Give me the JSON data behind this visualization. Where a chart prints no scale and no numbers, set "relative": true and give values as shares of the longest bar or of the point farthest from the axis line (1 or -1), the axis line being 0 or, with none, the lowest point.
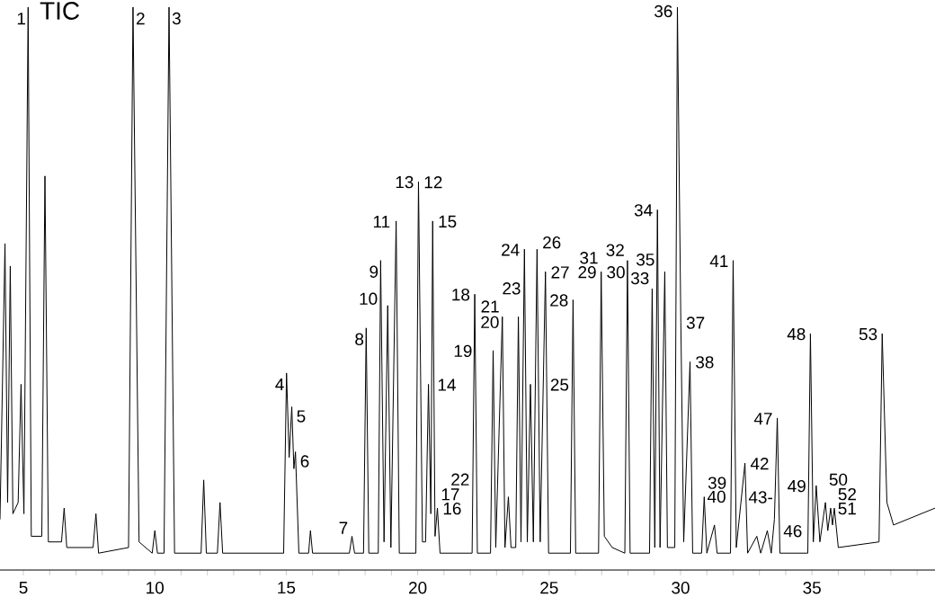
{
  "chart_data": {
    "type": "line",
    "title": "TIC",
    "relative": true,
    "color": "#000000",
    "xlim": [
      4.11,
      39.68
    ],
    "xticks": [
      5,
      {
        "value": 6,
        "label": null
      },
      {
        "value": 7,
        "label": null
      },
      {
        "value": 8,
        "label": null
      },
      {
        "value": 9,
        "label": null
      },
      10,
      {
        "value": 11,
        "label": null
      },
      {
        "value": 12,
        "label": null
      },
      {
        "value": 13,
        "label": null
      },
      {
        "value": 14,
        "label": null
      },
      15,
      {
        "value": 16,
        "label": null
      },
      {
        "value": 17,
        "label": null
      },
      {
        "value": 18,
        "label": null
      },
      {
        "value": 19,
        "label": null
      },
      20,
      {
        "value": 21,
        "label": null
      },
      {
        "value": 22,
        "label": null
      },
      {
        "value": 23,
        "label": null
      },
      {
        "value": 24,
        "label": null
      },
      25,
      {
        "value": 26,
        "label": null
      },
      {
        "value": 27,
        "label": null
      },
      {
        "value": 28,
        "label": null
      },
      {
        "value": 29,
        "label": null
      },
      30,
      {
        "value": 31,
        "label": null
      },
      {
        "value": 32,
        "label": null
      },
      {
        "value": 33,
        "label": null
      },
      {
        "value": 34,
        "label": null
      },
      35,
      {
        "value": 36,
        "label": null
      },
      {
        "value": 37,
        "label": null
      },
      {
        "value": 38,
        "label": null
      },
      {
        "value": 39,
        "label": null
      }
    ],
    "x": [
      4.11,
      4.3,
      4.4,
      4.5,
      4.6,
      4.8,
      4.91,
      5.02,
      5.18,
      5.3,
      5.7,
      5.82,
      5.95,
      6.45,
      6.55,
      6.65,
      7.65,
      7.76,
      7.86,
      9.0,
      9.17,
      9.4,
      9.9,
      10.0,
      10.1,
      10.35,
      10.54,
      10.75,
      11.76,
      11.86,
      11.96,
      12.38,
      12.48,
      12.58,
      14.9,
      15.01,
      15.11,
      15.21,
      15.29,
      15.35,
      15.48,
      15.85,
      15.92,
      16.0,
      17.4,
      17.5,
      17.6,
      17.94,
      18.04,
      18.14,
      18.5,
      18.59,
      18.72,
      18.86,
      18.98,
      19.18,
      19.3,
      19.93,
      20.03,
      20.18,
      20.3,
      20.41,
      20.5,
      20.57,
      20.66,
      20.75,
      20.85,
      22.07,
      22.17,
      22.27,
      22.77,
      22.87,
      22.97,
      23.22,
      23.32,
      23.45,
      23.55,
      23.73,
      23.83,
      23.93,
      24.06,
      24.17,
      24.29,
      24.4,
      24.54,
      24.66,
      24.86,
      24.98,
      25.81,
      25.91,
      26.01,
      26.88,
      26.98,
      27.1,
      27.4,
      27.88,
      27.98,
      28.08,
      28.82,
      28.92,
      29.02,
      29.12,
      29.22,
      29.4,
      29.5,
      29.78,
      29.88,
      30.01,
      30.12,
      30.36,
      30.46,
      30.8,
      30.9,
      31.0,
      31.29,
      31.39,
      31.9,
      32.0,
      32.12,
      32.45,
      32.55,
      32.9,
      33.05,
      33.3,
      33.45,
      33.57,
      33.68,
      33.78,
      34.84,
      34.94,
      35.05,
      35.16,
      35.3,
      35.51,
      35.6,
      35.71,
      35.78,
      35.85,
      36.0,
      37.55,
      37.67,
      37.85,
      38.1,
      39.68
    ],
    "values": [
      0.09,
      0.58,
      0.12,
      0.54,
      0.1,
      0.12,
      0.33,
      0.1,
      1,
      0.06,
      0.06,
      0.7,
      0.05,
      0.05,
      0.11,
      0.04,
      0.04,
      0.1,
      0.03,
      0.04,
      1,
      0.05,
      0.03,
      0.07,
      0.03,
      0.03,
      1,
      0.03,
      0.03,
      0.16,
      0.03,
      0.03,
      0.12,
      0.03,
      0.03,
      0.35,
      0.2,
      0.29,
      0.18,
      0.21,
      0.03,
      0.03,
      0.07,
      0.03,
      0.03,
      0.06,
      0.03,
      0.03,
      0.43,
      0.03,
      0.03,
      0.55,
      0.05,
      0.47,
      0.04,
      0.62,
      0.03,
      0.03,
      0.69,
      0.05,
      0.05,
      0.33,
      0.1,
      0.62,
      0.06,
      0.11,
      0.03,
      0.03,
      0.49,
      0.03,
      0.03,
      0.39,
      0.04,
      0.45,
      0.04,
      0.13,
      0.04,
      0.04,
      0.45,
      0.05,
      0.57,
      0.05,
      0.33,
      0.05,
      0.57,
      0.05,
      0.53,
      0.03,
      0.03,
      0.48,
      0.03,
      0.03,
      0.53,
      0.06,
      0.04,
      0.03,
      0.55,
      0.03,
      0.03,
      0.5,
      0.04,
      0.64,
      0.04,
      0.53,
      0.04,
      0.04,
      1,
      0.44,
      0.05,
      0.37,
      0.03,
      0.03,
      0.13,
      0.03,
      0.08,
      0.03,
      0.03,
      0.55,
      0.04,
      0.19,
      0.03,
      0.06,
      0.03,
      0.07,
      0.03,
      0.09,
      0.27,
      0.03,
      0.03,
      0.42,
      0.05,
      0.15,
      0.05,
      0.12,
      0.07,
      0.11,
      0.08,
      0.11,
      0.04,
      0.05,
      0.42,
      0.12,
      0.08,
      0.11
    ],
    "annotations": [
      {
        "text": "1",
        "x": 5.18,
        "y": 1
      },
      {
        "text": "2",
        "x": 9.17,
        "y": 1
      },
      {
        "text": "3",
        "x": 10.54,
        "y": 1
      },
      {
        "text": "4",
        "x": 15.01,
        "y": 0.35
      },
      {
        "text": "5",
        "x": 15.21,
        "y": 0.29
      },
      {
        "text": "6",
        "x": 15.35,
        "y": 0.21
      },
      {
        "text": "7",
        "x": 17.5,
        "y": 0.06
      },
      {
        "text": "8",
        "x": 18.04,
        "y": 0.43
      },
      {
        "text": "9",
        "x": 18.59,
        "y": 0.55
      },
      {
        "text": "10",
        "x": 18.86,
        "y": 0.47
      },
      {
        "text": "11",
        "x": 19.18,
        "y": 0.62
      },
      {
        "text": "12",
        "x": 20.03,
        "y": 0.69
      },
      {
        "text": "13",
        "x": 20.03,
        "y": 0.69
      },
      {
        "text": "14",
        "x": 20.41,
        "y": 0.33
      },
      {
        "text": "15",
        "x": 20.57,
        "y": 0.62
      },
      {
        "text": "16",
        "x": 20.75,
        "y": 0.11
      },
      {
        "text": "17",
        "x": 20.75,
        "y": 0.11
      },
      {
        "text": "18",
        "x": 22.17,
        "y": 0.49
      },
      {
        "text": "19",
        "x": 22.87,
        "y": 0.39
      },
      {
        "text": "20",
        "x": 22.87,
        "y": 0.39
      },
      {
        "text": "21",
        "x": 23.22,
        "y": 0.45
      },
      {
        "text": "22",
        "x": 23.45,
        "y": 0.13
      },
      {
        "text": "23",
        "x": 23.83,
        "y": 0.45
      },
      {
        "text": "24",
        "x": 24.06,
        "y": 0.57
      },
      {
        "text": "25",
        "x": 24.29,
        "y": 0.33
      },
      {
        "text": "26",
        "x": 24.54,
        "y": 0.57
      },
      {
        "text": "27",
        "x": 24.86,
        "y": 0.53
      },
      {
        "text": "28",
        "x": 25.91,
        "y": 0.48
      },
      {
        "text": "29",
        "x": 26.98,
        "y": 0.53
      },
      {
        "text": "30",
        "x": 26.98,
        "y": 0.53
      },
      {
        "text": "31",
        "x": 26.98,
        "y": 0.53
      },
      {
        "text": "32",
        "x": 27.98,
        "y": 0.55
      },
      {
        "text": "33",
        "x": 28.92,
        "y": 0.5
      },
      {
        "text": "34",
        "x": 29.12,
        "y": 0.64
      },
      {
        "text": "35",
        "x": 29.4,
        "y": 0.53
      },
      {
        "text": "36",
        "x": 29.88,
        "y": 1
      },
      {
        "text": "37",
        "x": 30.01,
        "y": 0.44
      },
      {
        "text": "38",
        "x": 30.36,
        "y": 0.37
      },
      {
        "text": "39",
        "x": 30.9,
        "y": 0.13
      },
      {
        "text": "40",
        "x": 31.29,
        "y": 0.08
      },
      {
        "text": "41",
        "x": 32.0,
        "y": 0.55
      },
      {
        "text": "42",
        "x": 32.45,
        "y": 0.19
      },
      {
        "text": "43-",
        "x": 32.9,
        "y": 0.06
      },
      {
        "text": "46",
        "x": 33.3,
        "y": 0.07
      },
      {
        "text": "47",
        "x": 33.68,
        "y": 0.27
      },
      {
        "text": "48",
        "x": 34.94,
        "y": 0.42
      },
      {
        "text": "49",
        "x": 35.16,
        "y": 0.15
      },
      {
        "text": "50",
        "x": 35.51,
        "y": 0.12
      },
      {
        "text": "51",
        "x": 35.71,
        "y": 0.11
      },
      {
        "text": "52",
        "x": 35.85,
        "y": 0.11
      },
      {
        "text": "53",
        "x": 37.67,
        "y": 0.42
      }
    ]
  }
}
